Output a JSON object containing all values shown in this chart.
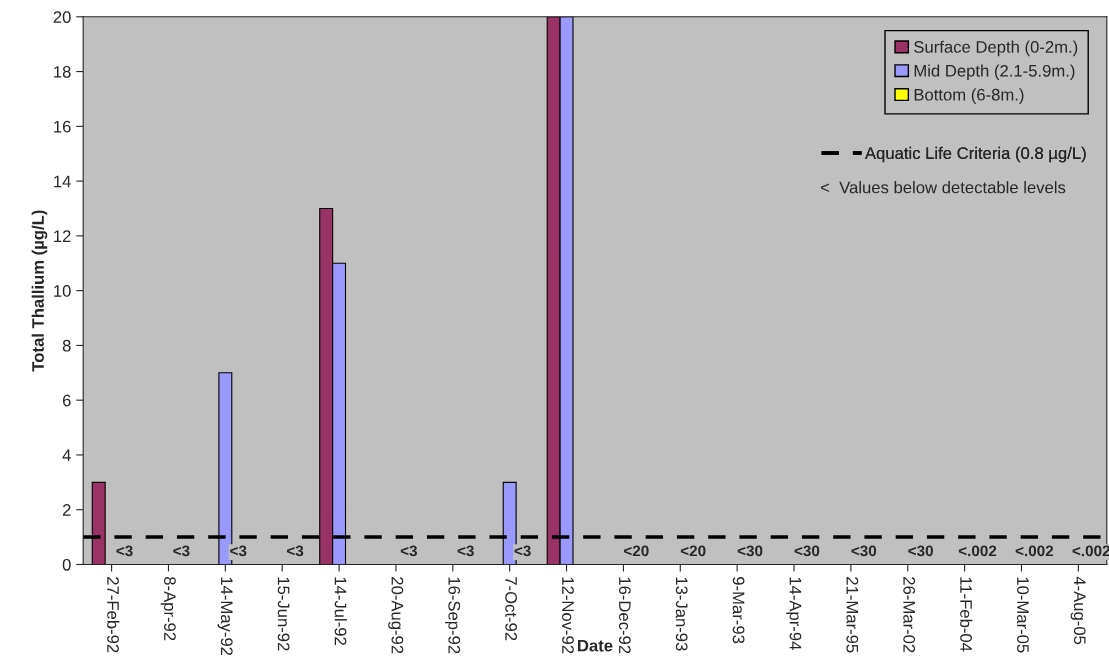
{
  "chart_data": {
    "type": "bar",
    "xlabel": "Date",
    "ylabel": "Total Thallium (µg/L)",
    "categories": [
      "27-Feb-92",
      "8-Apr-92",
      "14-May-92",
      "15-Jun-92",
      "14-Jul-92",
      "20-Aug-92",
      "16-Sep-92",
      "7-Oct-92",
      "12-Nov-92",
      "16-Dec-92",
      "13-Jan-93",
      "9-Mar-93",
      "14-Apr-94",
      "21-Mar-95",
      "26-Mar-02",
      "11-Feb-04",
      "10-Mar-05",
      "4-Aug-05"
    ],
    "series": [
      {
        "name": "Surface Depth (0-2m.)",
        "color": "#993366",
        "values": [
          3,
          null,
          null,
          null,
          13,
          null,
          null,
          null,
          20,
          null,
          null,
          null,
          null,
          null,
          null,
          null,
          null,
          null
        ]
      },
      {
        "name": "Mid Depth (2.1-5.9m.)",
        "color": "#9999ff",
        "values": [
          null,
          null,
          7,
          null,
          11,
          null,
          null,
          3,
          20,
          null,
          null,
          null,
          null,
          null,
          null,
          null,
          null,
          null
        ]
      },
      {
        "name": "Bottom (6-8m.)",
        "color": "#ffff00",
        "values": [
          0,
          0,
          0,
          0,
          null,
          0,
          0,
          0,
          null,
          0,
          0,
          0,
          0,
          0,
          0,
          0,
          0,
          0
        ],
        "value_labels": [
          "<3",
          "<3",
          "<3",
          "<3",
          null,
          "<3",
          "<3",
          "<3",
          null,
          "<20",
          "<20",
          "<30",
          "<30",
          "<30",
          "<30",
          "<.002",
          "<.002",
          "<.002"
        ]
      }
    ],
    "ylim": [
      0,
      20
    ],
    "yticks": [
      0,
      2,
      4,
      6,
      8,
      10,
      12,
      14,
      16,
      18,
      20
    ],
    "grid": false,
    "legend": "top right",
    "ref_lines": [
      {
        "axis": "y",
        "value": 1,
        "label": "Aquatic Life Criteria (0.8 µg/L)",
        "color": "#000000",
        "line_style": "dashed"
      }
    ],
    "annotations": [
      "<  Values below detectable levels"
    ]
  }
}
